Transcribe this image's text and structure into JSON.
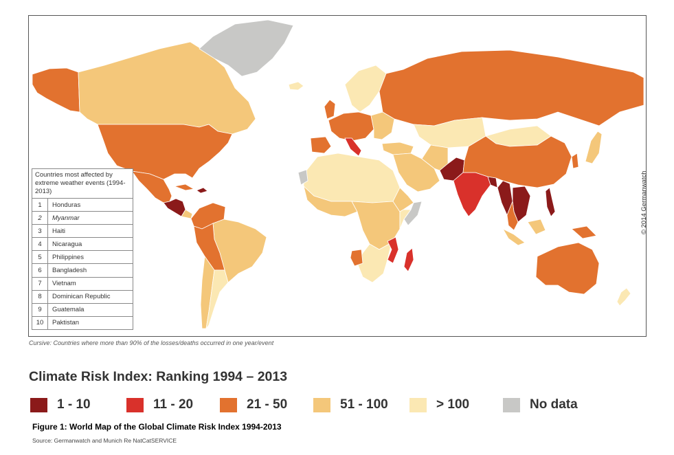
{
  "colors": {
    "rank_1_10": "#8b1a1a",
    "rank_11_20": "#d9312b",
    "rank_21_50": "#e2722f",
    "rank_51_100": "#f4c77a",
    "rank_over_100": "#fbe8b3",
    "no_data": "#c8c8c6"
  },
  "copyright": "© 2014 Germanwatch",
  "ranking_box": {
    "heading": "Countries most affected by extreme weather events (1994-2013)",
    "rows": [
      {
        "rank": "1",
        "country": "Honduras",
        "cursive": false
      },
      {
        "rank": "2",
        "country": "Myanmar",
        "cursive": true
      },
      {
        "rank": "3",
        "country": "Haiti",
        "cursive": false
      },
      {
        "rank": "4",
        "country": "Nicaragua",
        "cursive": false
      },
      {
        "rank": "5",
        "country": "Philippines",
        "cursive": false
      },
      {
        "rank": "6",
        "country": "Bangladesh",
        "cursive": false
      },
      {
        "rank": "7",
        "country": "Vietnam",
        "cursive": false
      },
      {
        "rank": "8",
        "country": "Dominican Republic",
        "cursive": false
      },
      {
        "rank": "9",
        "country": "Guatemala",
        "cursive": false
      },
      {
        "rank": "10",
        "country": "Paktistan",
        "cursive": false
      }
    ]
  },
  "note": "Cursive: Countries where more than 90% of the losses/deaths occurred in one year/event",
  "legend": {
    "title": "Climate Risk Index: Ranking 1994 – 2013",
    "items": [
      {
        "label": "1 - 10",
        "color": "#8b1a1a"
      },
      {
        "label": "11 - 20",
        "color": "#d9312b"
      },
      {
        "label": "21 - 50",
        "color": "#e2722f"
      },
      {
        "label": "51 - 100",
        "color": "#f4c77a"
      },
      {
        "label": "> 100",
        "color": "#fbe8b3"
      },
      {
        "label": "No data",
        "color": "#c8c8c6"
      }
    ]
  },
  "figure_caption": "Figure 1: World Map of the Global Climate Risk Index 1994-2013",
  "source": "Source: Germanwatch and Munich Re NatCatSERVICE"
}
